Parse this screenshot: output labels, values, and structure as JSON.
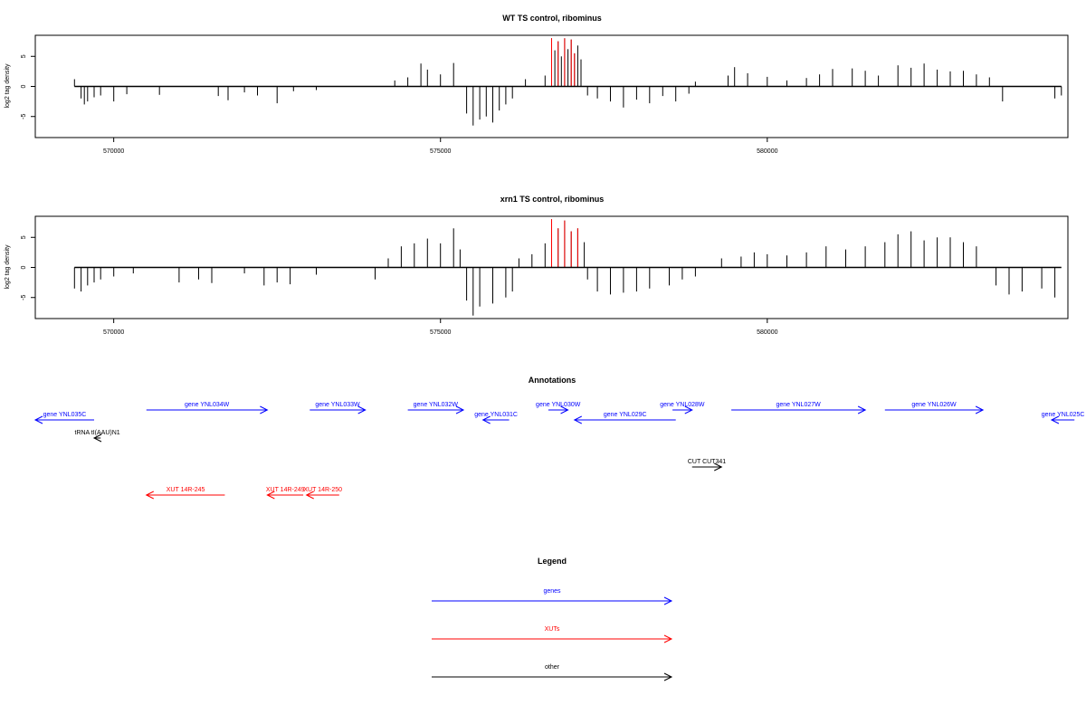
{
  "panels": [
    {
      "title": "WT TS control, ribominus",
      "ylabel": "log2 tag density",
      "yticks": [
        -5,
        0,
        5
      ],
      "ylim": [
        -8.5,
        8.5
      ],
      "xlim": [
        568800,
        584600
      ],
      "xticks": [
        570000,
        575000,
        580000
      ]
    },
    {
      "title": "xrn1 TS control, ribominus",
      "ylabel": "log2 tag density",
      "yticks": [
        -5,
        0,
        5
      ],
      "ylim": [
        -8.5,
        8.5
      ],
      "xlim": [
        568800,
        584600
      ],
      "xticks": [
        570000,
        575000,
        580000
      ]
    }
  ],
  "annotations": {
    "title": "Annotations",
    "features": [
      {
        "label": "gene YNL035C",
        "type": "gene",
        "strand": "-",
        "start": 568800,
        "end": 569700,
        "row": 1
      },
      {
        "label": "gene YNL034W",
        "type": "gene",
        "strand": "+",
        "start": 570500,
        "end": 572350,
        "row": 0
      },
      {
        "label": "gene YNL033W",
        "type": "gene",
        "strand": "+",
        "start": 573000,
        "end": 573850,
        "row": 0
      },
      {
        "label": "gene YNL032W",
        "type": "gene",
        "strand": "+",
        "start": 574500,
        "end": 575350,
        "row": 0
      },
      {
        "label": "gene YNL031C",
        "type": "gene",
        "strand": "-",
        "start": 575650,
        "end": 576050,
        "row": 1
      },
      {
        "label": "gene YNL030W",
        "type": "gene",
        "strand": "+",
        "start": 576650,
        "end": 576950,
        "row": 0
      },
      {
        "label": "gene YNL029C",
        "type": "gene",
        "strand": "-",
        "start": 577050,
        "end": 578600,
        "row": 1
      },
      {
        "label": "gene YNL028W",
        "type": "gene",
        "strand": "+",
        "start": 578550,
        "end": 578850,
        "row": 0
      },
      {
        "label": "gene YNL027W",
        "type": "gene",
        "strand": "+",
        "start": 579450,
        "end": 581500,
        "row": 0
      },
      {
        "label": "gene YNL026W",
        "type": "gene",
        "strand": "+",
        "start": 581800,
        "end": 583300,
        "row": 0
      },
      {
        "label": "gene YNL025C",
        "type": "gene",
        "strand": "-",
        "start": 584350,
        "end": 584700,
        "row": 1
      },
      {
        "label": "tRNA tI(AAU)N1",
        "type": "other",
        "strand": "-",
        "start": 569700,
        "end": 569800,
        "row": 2
      },
      {
        "label": "CUT CUT341",
        "type": "other",
        "strand": "+",
        "start": 578850,
        "end": 579300,
        "row": 3
      },
      {
        "label": "XUT 14R-245",
        "type": "XUT",
        "strand": "-",
        "start": 570500,
        "end": 571700,
        "row": 4
      },
      {
        "label": "XUT 14R-249",
        "type": "XUT",
        "strand": "-",
        "start": 572350,
        "end": 572900,
        "row": 4
      },
      {
        "label": "XUT 14R-250",
        "type": "XUT",
        "strand": "-",
        "start": 572950,
        "end": 573450,
        "row": 4
      }
    ]
  },
  "legend": {
    "title": "Legend",
    "items": [
      {
        "label": "genes",
        "color": "#0000ff"
      },
      {
        "label": "XUTs",
        "color": "#ff0000"
      },
      {
        "label": "other",
        "color": "#000000"
      }
    ]
  },
  "colors": {
    "gene": "#0000ff",
    "XUT": "#ff0000",
    "other": "#000000",
    "highlight": "#ff0000",
    "signal": "#000000"
  },
  "chart_data": [
    {
      "type": "bar",
      "title": "WT TS control, ribominus",
      "xlabel": "",
      "ylabel": "log2 tag density",
      "xlim": [
        568800,
        584600
      ],
      "ylim": [
        -8.5,
        8.5
      ],
      "grid": false,
      "series": [
        {
          "values": [
            [
              569400,
              1.2
            ],
            [
              569500,
              -2.0
            ],
            [
              569550,
              -3.0
            ],
            [
              569600,
              -2.5
            ],
            [
              569700,
              -1.8
            ],
            [
              569800,
              -1.5
            ],
            [
              570000,
              -2.5
            ],
            [
              570200,
              -1.3
            ],
            [
              570700,
              -1.4
            ],
            [
              571600,
              -1.6
            ],
            [
              571750,
              -2.3
            ],
            [
              572000,
              -1.0
            ],
            [
              572200,
              -1.5
            ],
            [
              572500,
              -2.8
            ],
            [
              572750,
              -0.8
            ],
            [
              573100,
              -0.6
            ],
            [
              574300,
              1.0
            ],
            [
              574500,
              1.5
            ],
            [
              574700,
              3.8
            ],
            [
              574800,
              2.8
            ],
            [
              575000,
              2.0
            ],
            [
              575200,
              3.9
            ],
            [
              575400,
              -4.5
            ],
            [
              575500,
              -6.5
            ],
            [
              575600,
              -5.5
            ],
            [
              575700,
              -5.0
            ],
            [
              575800,
              -6.0
            ],
            [
              575900,
              -4.0
            ],
            [
              576000,
              -3.0
            ],
            [
              576100,
              -2.0
            ],
            [
              576300,
              1.2
            ],
            [
              576600,
              1.8
            ],
            [
              576700,
              8.0
            ],
            [
              576750,
              6.0
            ],
            [
              576800,
              7.5
            ],
            [
              576850,
              5.0
            ],
            [
              576900,
              8.0
            ],
            [
              576950,
              6.2
            ],
            [
              577000,
              7.8
            ],
            [
              577050,
              5.5
            ],
            [
              577100,
              6.8
            ],
            [
              577150,
              4.5
            ],
            [
              577250,
              -1.5
            ],
            [
              577400,
              -2.0
            ],
            [
              577600,
              -2.5
            ],
            [
              577800,
              -3.5
            ],
            [
              578000,
              -2.2
            ],
            [
              578200,
              -2.8
            ],
            [
              578400,
              -1.6
            ],
            [
              578600,
              -2.5
            ],
            [
              578800,
              -1.2
            ],
            [
              578900,
              0.8
            ],
            [
              579400,
              1.8
            ],
            [
              579500,
              3.2
            ],
            [
              579700,
              2.2
            ],
            [
              580000,
              1.6
            ],
            [
              580300,
              1.0
            ],
            [
              580600,
              1.4
            ],
            [
              580800,
              2.0
            ],
            [
              581000,
              2.9
            ],
            [
              581300,
              3.0
            ],
            [
              581500,
              2.6
            ],
            [
              581700,
              1.8
            ],
            [
              582000,
              3.5
            ],
            [
              582200,
              3.1
            ],
            [
              582400,
              3.8
            ],
            [
              582600,
              2.8
            ],
            [
              582800,
              2.5
            ],
            [
              583000,
              2.6
            ],
            [
              583200,
              2.0
            ],
            [
              583400,
              1.5
            ],
            [
              583600,
              -2.5
            ],
            [
              584400,
              -2.0
            ],
            [
              584500,
              -1.5
            ]
          ]
        },
        {
          "name": "",
          "highlight_positions": [
            576700,
            576800,
            576900,
            577000,
            577050
          ]
        }
      ]
    },
    {
      "type": "bar",
      "title": "xrn1 TS control, ribominus",
      "xlabel": "",
      "ylabel": "log2 tag density",
      "xlim": [
        568800,
        584600
      ],
      "ylim": [
        -8.5,
        8.5
      ],
      "grid": false,
      "series": [
        {
          "values": [
            [
              569400,
              -3.5
            ],
            [
              569500,
              -4.0
            ],
            [
              569600,
              -3.0
            ],
            [
              569700,
              -2.5
            ],
            [
              569800,
              -2.0
            ],
            [
              570000,
              -1.5
            ],
            [
              570300,
              -1.0
            ],
            [
              571000,
              -2.5
            ],
            [
              571300,
              -2.0
            ],
            [
              571500,
              -2.6
            ],
            [
              572000,
              -1.0
            ],
            [
              572300,
              -3.0
            ],
            [
              572500,
              -2.5
            ],
            [
              572700,
              -2.8
            ],
            [
              573100,
              -1.2
            ],
            [
              574000,
              -2.0
            ],
            [
              574200,
              1.5
            ],
            [
              574400,
              3.5
            ],
            [
              574600,
              4.0
            ],
            [
              574800,
              4.8
            ],
            [
              575000,
              4.0
            ],
            [
              575200,
              6.5
            ],
            [
              575300,
              3.0
            ],
            [
              575400,
              -5.5
            ],
            [
              575500,
              -8.0
            ],
            [
              575600,
              -6.5
            ],
            [
              575800,
              -6.0
            ],
            [
              576000,
              -5.0
            ],
            [
              576100,
              -4.0
            ],
            [
              576200,
              1.5
            ],
            [
              576400,
              2.2
            ],
            [
              576600,
              4.0
            ],
            [
              576700,
              8.0
            ],
            [
              576800,
              6.5
            ],
            [
              576900,
              7.8
            ],
            [
              577000,
              6.0
            ],
            [
              577100,
              6.5
            ],
            [
              577200,
              4.2
            ],
            [
              577250,
              -2.0
            ],
            [
              577400,
              -4.0
            ],
            [
              577600,
              -4.5
            ],
            [
              577800,
              -4.2
            ],
            [
              578000,
              -4.0
            ],
            [
              578200,
              -3.5
            ],
            [
              578500,
              -3.0
            ],
            [
              578700,
              -2.0
            ],
            [
              578900,
              -1.5
            ],
            [
              579300,
              1.5
            ],
            [
              579600,
              1.8
            ],
            [
              579800,
              2.5
            ],
            [
              580000,
              2.2
            ],
            [
              580300,
              2.0
            ],
            [
              580600,
              2.5
            ],
            [
              580900,
              3.5
            ],
            [
              581200,
              3.0
            ],
            [
              581500,
              3.5
            ],
            [
              581800,
              4.2
            ],
            [
              582000,
              5.5
            ],
            [
              582200,
              6.0
            ],
            [
              582400,
              4.5
            ],
            [
              582600,
              5.0
            ],
            [
              582800,
              5.0
            ],
            [
              583000,
              4.2
            ],
            [
              583200,
              3.5
            ],
            [
              583500,
              -3.0
            ],
            [
              583700,
              -4.5
            ],
            [
              583900,
              -4.0
            ],
            [
              584200,
              -3.5
            ],
            [
              584400,
              -5.0
            ]
          ]
        },
        {
          "name": "",
          "highlight_positions": [
            576700,
            576800,
            576900,
            577000,
            577100
          ]
        }
      ]
    }
  ]
}
